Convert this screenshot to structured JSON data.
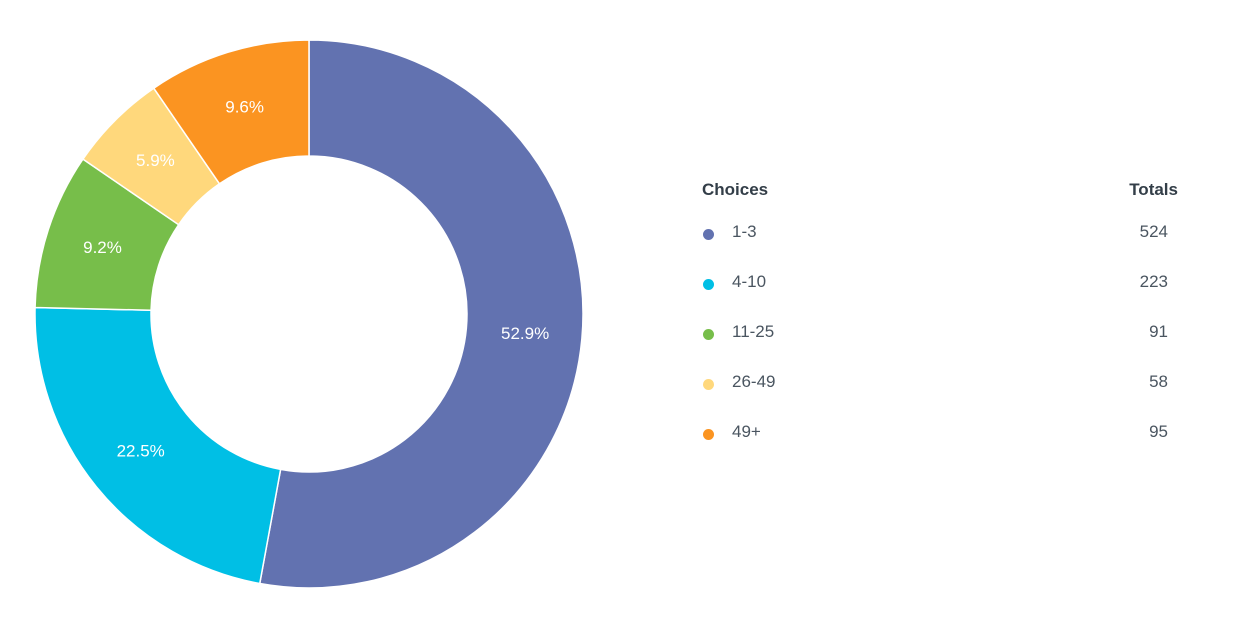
{
  "chart_data": {
    "type": "pie",
    "donut": true,
    "categories": [
      "1-3",
      "4-10",
      "11-25",
      "26-49",
      "49+"
    ],
    "values": [
      524,
      223,
      91,
      58,
      95
    ],
    "percent_labels": [
      "52.9%",
      "22.5%",
      "9.2%",
      "5.9%",
      "9.6%"
    ],
    "colors": [
      "#6272b0",
      "#00bfe5",
      "#77be4a",
      "#ffd87c",
      "#fb9421"
    ],
    "legend_position": "right"
  },
  "legend": {
    "header_choices": "Choices",
    "header_totals": "Totals",
    "rows": [
      {
        "label": "1-3",
        "total": "524",
        "color": "#6272b0"
      },
      {
        "label": "4-10",
        "total": "223",
        "color": "#00bfe5"
      },
      {
        "label": "11-25",
        "total": "91",
        "color": "#77be4a"
      },
      {
        "label": "26-49",
        "total": "58",
        "color": "#ffd87c"
      },
      {
        "label": "49+",
        "total": "95",
        "color": "#fb9421"
      }
    ]
  }
}
